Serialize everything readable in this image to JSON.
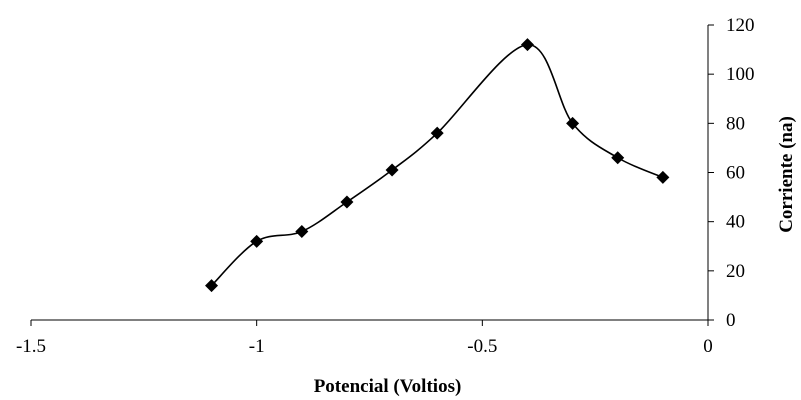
{
  "chart_data": {
    "type": "scatter",
    "smoothed_line": true,
    "xlabel": "Potencial (Voltios)",
    "ylabel": "Corriente (na)",
    "xlim": [
      -1.5,
      0
    ],
    "ylim": [
      0,
      120
    ],
    "x_ticks": [
      -1.5,
      -1,
      -0.5,
      0
    ],
    "x_tick_labels": [
      "-1.5",
      "-1",
      "-0.5",
      "0"
    ],
    "y_ticks": [
      0,
      20,
      40,
      60,
      80,
      100,
      120
    ],
    "y_tick_labels": [
      "0",
      "20",
      "40",
      "60",
      "80",
      "100",
      "120"
    ],
    "y_axis_side": "right",
    "grid": false,
    "legend": "none",
    "marker": "diamond",
    "series_color": "#000000",
    "series": [
      {
        "x": [
          -1.1,
          -1.0,
          -0.9,
          -0.8,
          -0.7,
          -0.6,
          -0.4,
          -0.3,
          -0.2,
          -0.1
        ],
        "y": [
          14,
          32,
          36,
          48,
          61,
          76,
          112,
          80,
          66,
          58
        ]
      }
    ]
  }
}
